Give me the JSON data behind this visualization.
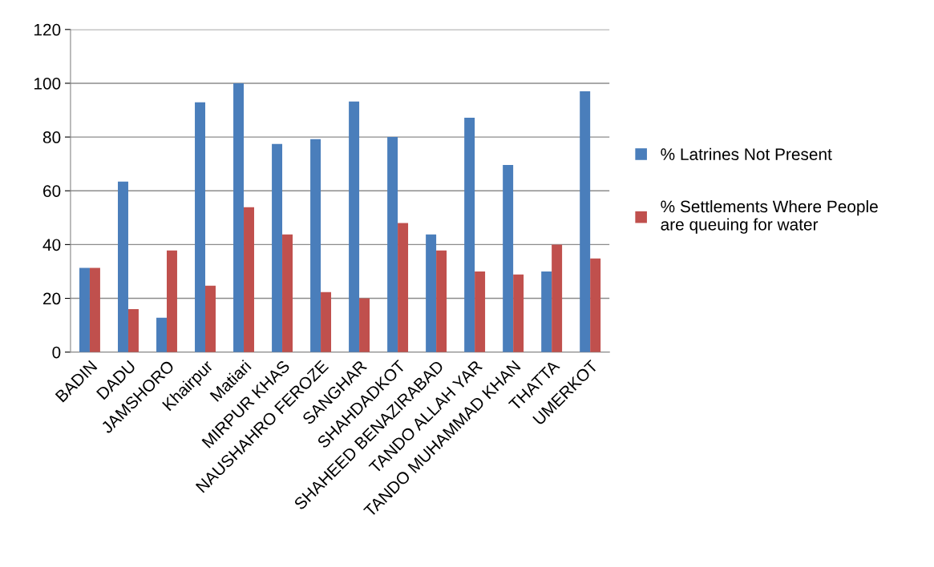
{
  "chart_data": {
    "type": "bar",
    "categories": [
      "BADIN",
      "DADU",
      "JAMSHORO",
      "Khairpur",
      "Matiari",
      "MIRPUR KHAS",
      "NAUSHAHRO FEROZE",
      "SANGHAR",
      "SHAHDADKOT",
      "SHAHEED BENAZIRABAD",
      "TANDO ALLAH YAR",
      "TANDO MUHAMMAD KHAN",
      "THATTA",
      "UMERKOT"
    ],
    "series": [
      {
        "name": "% Latrines Not Present",
        "color": "#4a7ebb",
        "values": [
          31.3,
          63.4,
          12.8,
          92.9,
          100,
          77.4,
          79.2,
          93.2,
          80,
          43.8,
          87.2,
          69.6,
          30,
          97
        ]
      },
      {
        "name": "% Settlements Where People are queuing for water",
        "color": "#c0504d",
        "values": [
          31.3,
          16,
          37.8,
          24.7,
          53.9,
          43.8,
          22.3,
          20,
          48,
          37.8,
          30,
          28.9,
          40,
          34.8
        ]
      }
    ],
    "ylim": [
      0,
      120
    ],
    "yticks": [
      0,
      20,
      40,
      60,
      80,
      100,
      120
    ],
    "grid": "y",
    "legend": "right"
  }
}
